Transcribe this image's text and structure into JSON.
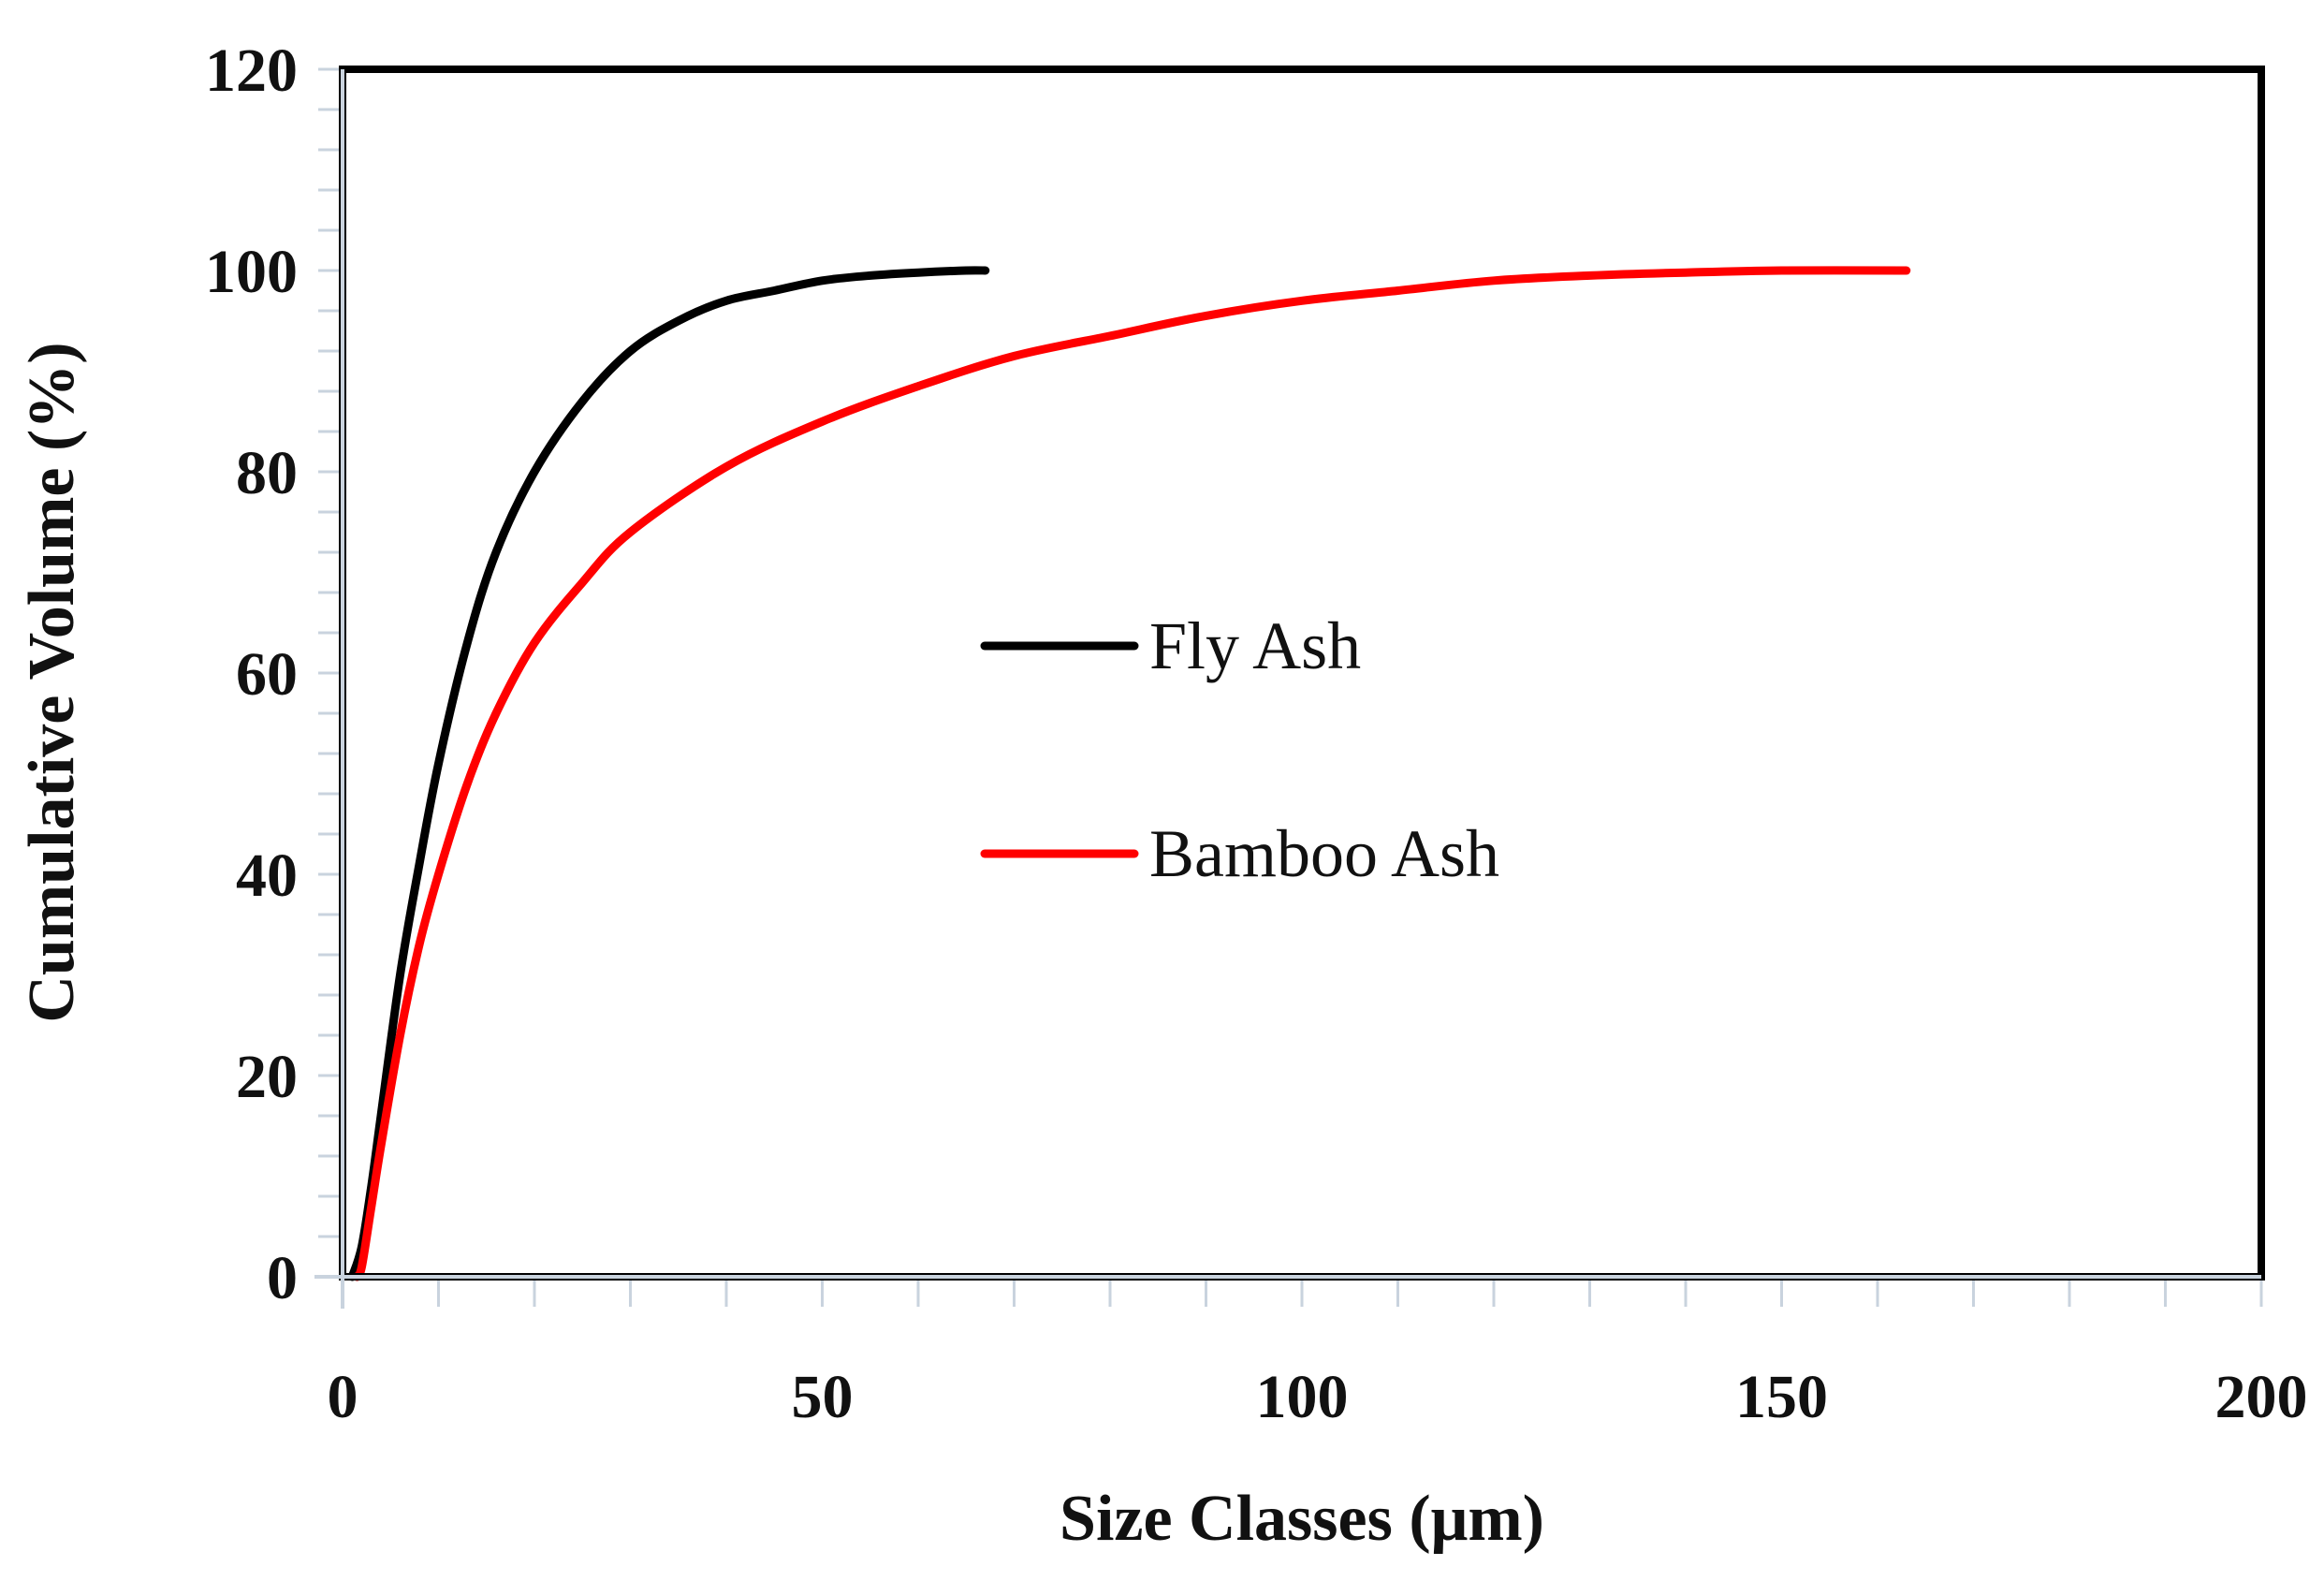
{
  "chart_data": {
    "type": "line",
    "xlabel": "Size Classes (μm)",
    "ylabel": "Cumulative Volume (%)",
    "xlim": [
      0,
      200
    ],
    "ylim": [
      0,
      120
    ],
    "xticks": [
      0,
      50,
      100,
      150,
      200
    ],
    "yticks": [
      0,
      20,
      40,
      60,
      80,
      100,
      120
    ],
    "xtick_labels": [
      "0",
      "50",
      "100",
      "150",
      "200"
    ],
    "ytick_labels": [
      "0",
      "20",
      "40",
      "60",
      "80",
      "100",
      "120"
    ],
    "grid": false,
    "legend_position": "center",
    "series": [
      {
        "name": "Fly Ash",
        "color": "#000000",
        "x": [
          1,
          2,
          3,
          4,
          6,
          8,
          10,
          13,
          16,
          20,
          25,
          30,
          35,
          40,
          45,
          50,
          55,
          60,
          65,
          67
        ],
        "y": [
          0,
          3,
          9,
          16,
          30,
          41,
          51,
          63,
          72,
          80,
          87,
          92,
          95,
          97,
          98,
          99,
          99.5,
          99.8,
          100,
          100
        ]
      },
      {
        "name": "Bamboo Ash",
        "color": "#ff0000",
        "x": [
          1.5,
          2,
          3,
          4,
          6,
          8,
          10,
          13,
          16,
          20,
          25,
          30,
          40,
          50,
          60,
          70,
          80,
          90,
          100,
          110,
          120,
          130,
          140,
          150,
          163
        ],
        "y": [
          0,
          1,
          7,
          13,
          24,
          33,
          40,
          49,
          56,
          63,
          69,
          74,
          80.5,
          85,
          88.5,
          91.5,
          93.5,
          95.5,
          97,
          98,
          99,
          99.5,
          99.8,
          100,
          100
        ]
      }
    ]
  }
}
